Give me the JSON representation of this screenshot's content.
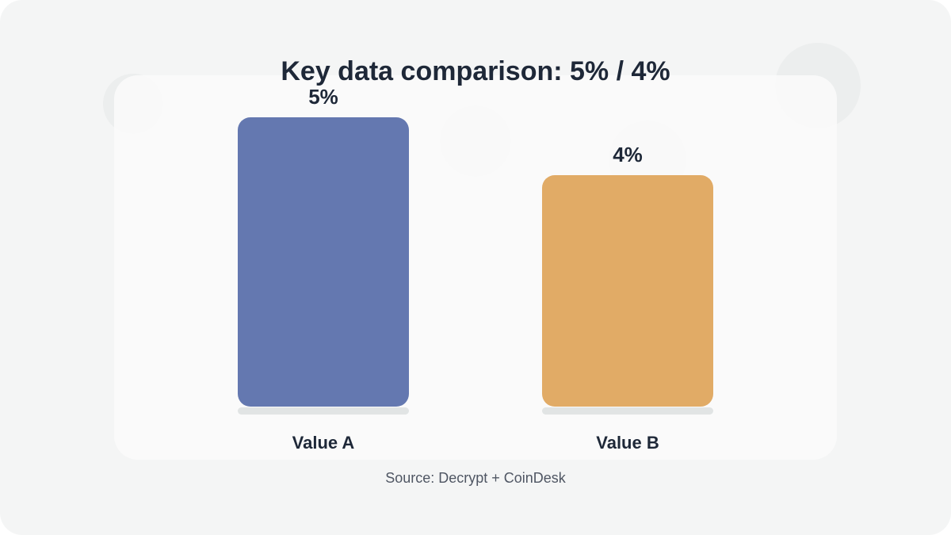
{
  "chart_data": {
    "type": "bar",
    "title": "Key data comparison: 5% / 4%",
    "categories": [
      "Value A",
      "Value B"
    ],
    "values": [
      5,
      4
    ],
    "value_labels": [
      "5%",
      "4%"
    ],
    "colors": [
      "#6478b0",
      "#e1ab66"
    ],
    "ylim": [
      0,
      5
    ],
    "grid": false,
    "source": "Source: Decrypt + CoinDesk"
  }
}
